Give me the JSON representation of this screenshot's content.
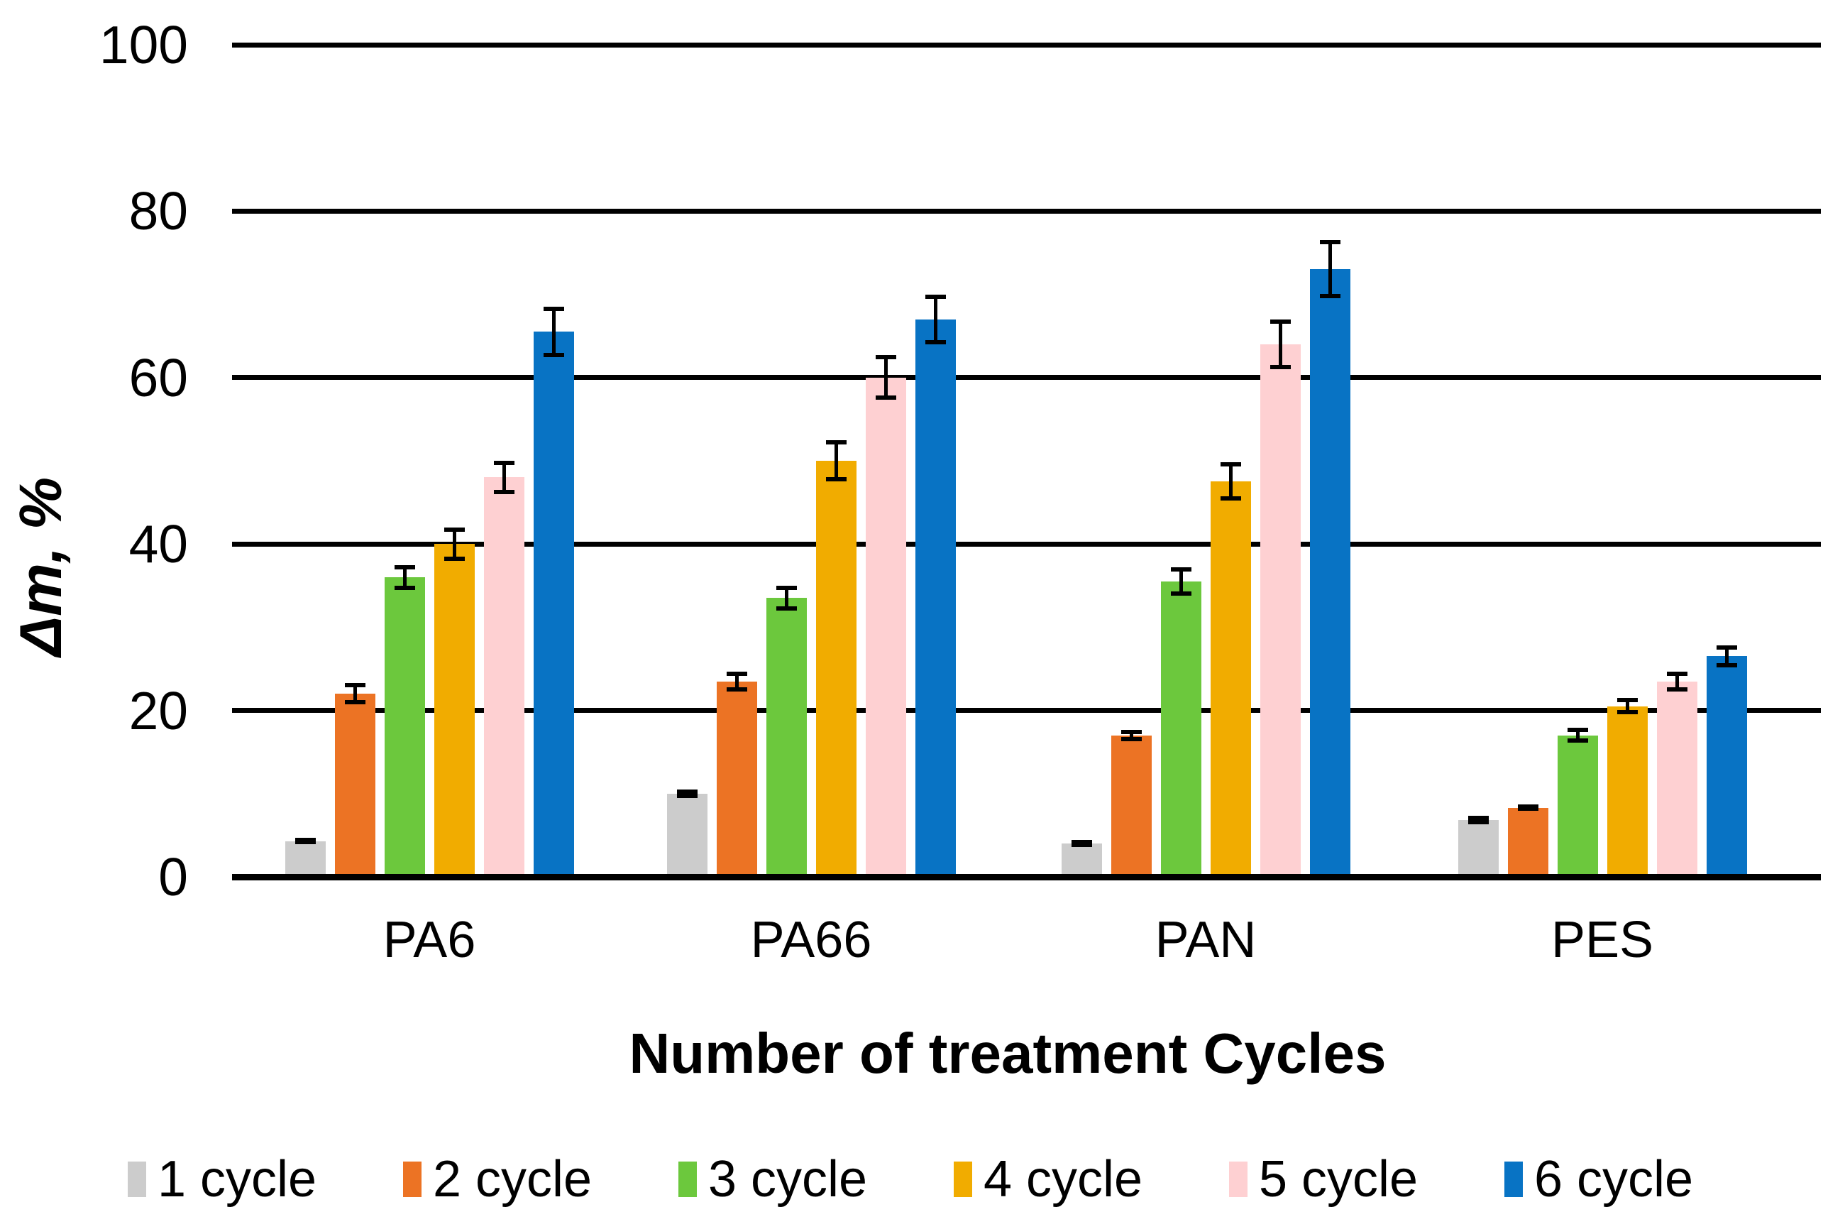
{
  "chart_data": {
    "type": "bar",
    "title": "",
    "xlabel": "Number of treatment Cycles",
    "ylabel": "Δm, %",
    "ylim": [
      0,
      100
    ],
    "yticks": [
      0,
      20,
      40,
      60,
      80,
      100
    ],
    "grid": "horizontal-black-lines",
    "legend_position": "bottom",
    "error_bars": true,
    "categories": [
      "PA6",
      "PA66",
      "PAN",
      "PES"
    ],
    "series": [
      {
        "name": "1 cycle",
        "color": "#CCCCCC",
        "values": [
          4.3,
          10,
          4,
          6.8
        ],
        "errors": [
          0.4,
          0.5,
          0.4,
          0.5
        ]
      },
      {
        "name": "2 cycle",
        "color": "#EC7324",
        "values": [
          22,
          23.5,
          17,
          8.3
        ],
        "errors": [
          1.3,
          1.2,
          0.7,
          0.4
        ]
      },
      {
        "name": "3 cycle",
        "color": "#6CC83D",
        "values": [
          36,
          33.5,
          35.5,
          17
        ],
        "errors": [
          1.5,
          1.5,
          1.7,
          0.9
        ]
      },
      {
        "name": "4 cycle",
        "color": "#F1AC00",
        "values": [
          40,
          50,
          47.5,
          20.5
        ],
        "errors": [
          2.0,
          2.5,
          2.3,
          1.0
        ]
      },
      {
        "name": "5 cycle",
        "color": "#FED0D2",
        "values": [
          48,
          60,
          64,
          23.5
        ],
        "errors": [
          2.0,
          2.7,
          3.0,
          1.2
        ]
      },
      {
        "name": "6 cycle",
        "color": "#0873C4",
        "values": [
          65.5,
          67,
          73,
          26.5
        ],
        "errors": [
          3.0,
          3.0,
          3.5,
          1.3
        ]
      }
    ]
  }
}
